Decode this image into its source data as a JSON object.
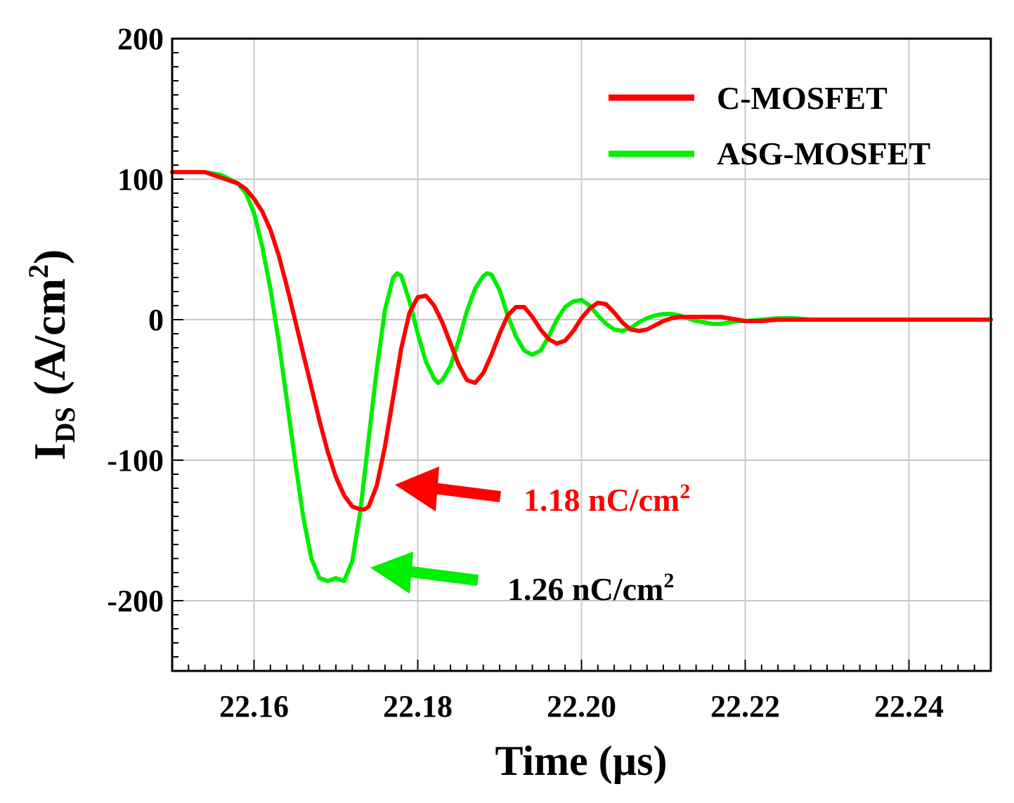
{
  "chart_data": {
    "type": "line",
    "title": "",
    "xlabel": "Time (µs)",
    "ylabel": {
      "main": "I",
      "subscript": "DS",
      "units_prefix": " (A/cm",
      "units_sup": "2",
      "units_suffix": ")"
    },
    "xlim": [
      22.15,
      22.25
    ],
    "ylim": [
      -250,
      200
    ],
    "xticks": [
      22.16,
      22.18,
      22.2,
      22.22,
      22.24
    ],
    "xtick_labels": [
      "22.16",
      "22.18",
      "22.20",
      "22.22",
      "22.24"
    ],
    "yticks": [
      200,
      100,
      0,
      -100,
      -200
    ],
    "ytick_labels": [
      "200",
      "100",
      "0",
      "-100",
      "-200"
    ],
    "grid": true,
    "legend_position": "top-right",
    "series": [
      {
        "name": "C-MOSFET",
        "color": "#ff0000",
        "x": [
          22.15,
          22.152,
          22.154,
          22.156,
          22.158,
          22.159,
          22.16,
          22.161,
          22.162,
          22.163,
          22.164,
          22.165,
          22.166,
          22.167,
          22.168,
          22.169,
          22.17,
          22.171,
          22.172,
          22.173,
          22.1735,
          22.174,
          22.175,
          22.176,
          22.177,
          22.178,
          22.179,
          22.18,
          22.181,
          22.182,
          22.183,
          22.184,
          22.185,
          22.186,
          22.187,
          22.188,
          22.189,
          22.19,
          22.191,
          22.192,
          22.193,
          22.194,
          22.195,
          22.196,
          22.197,
          22.198,
          22.199,
          22.2,
          22.201,
          22.202,
          22.203,
          22.204,
          22.205,
          22.206,
          22.207,
          22.208,
          22.209,
          22.21,
          22.211,
          22.212,
          22.213,
          22.214,
          22.215,
          22.216,
          22.217,
          22.218,
          22.219,
          22.22,
          22.222,
          22.224,
          22.226,
          22.228,
          22.23,
          22.235,
          22.24,
          22.245,
          22.25
        ],
        "values": [
          105,
          105,
          105,
          101,
          97,
          93,
          86,
          77,
          64,
          46,
          24,
          0,
          -24,
          -48,
          -72,
          -94,
          -112,
          -125,
          -133,
          -135,
          -135,
          -133,
          -118,
          -90,
          -55,
          -20,
          5,
          16,
          17,
          10,
          -2,
          -17,
          -32,
          -43,
          -45,
          -38,
          -25,
          -10,
          3,
          9,
          9,
          2,
          -7,
          -14,
          -17,
          -15,
          -8,
          1,
          8,
          12,
          11,
          5,
          -2,
          -7,
          -8,
          -7,
          -4,
          -1,
          1,
          2,
          2,
          2,
          2,
          2,
          2,
          1,
          0,
          -1,
          -1,
          0,
          0,
          0,
          0,
          0,
          0,
          0,
          0
        ]
      },
      {
        "name": "ASG-MOSFET",
        "color": "#00ee00",
        "x": [
          22.15,
          22.152,
          22.154,
          22.156,
          22.158,
          22.159,
          22.16,
          22.161,
          22.162,
          22.163,
          22.164,
          22.165,
          22.166,
          22.167,
          22.168,
          22.169,
          22.17,
          22.1705,
          22.171,
          22.172,
          22.173,
          22.174,
          22.175,
          22.176,
          22.177,
          22.1775,
          22.178,
          22.179,
          22.18,
          22.181,
          22.182,
          22.1825,
          22.183,
          22.184,
          22.185,
          22.186,
          22.187,
          22.188,
          22.1885,
          22.189,
          22.19,
          22.191,
          22.192,
          22.193,
          22.194,
          22.195,
          22.196,
          22.197,
          22.198,
          22.199,
          22.2,
          22.201,
          22.202,
          22.203,
          22.204,
          22.205,
          22.206,
          22.207,
          22.208,
          22.209,
          22.21,
          22.211,
          22.212,
          22.213,
          22.214,
          22.215,
          22.216,
          22.217,
          22.218,
          22.219,
          22.22,
          22.222,
          22.224,
          22.226,
          22.228,
          22.23,
          22.235,
          22.24,
          22.245,
          22.25
        ],
        "values": [
          105,
          105,
          105,
          103,
          97,
          90,
          76,
          52,
          22,
          -15,
          -57,
          -100,
          -140,
          -170,
          -184,
          -186,
          -184,
          -185,
          -186,
          -172,
          -136,
          -85,
          -35,
          7,
          30,
          33,
          31,
          13,
          -10,
          -30,
          -42,
          -45,
          -43,
          -33,
          -15,
          6,
          22,
          31,
          33,
          32,
          21,
          3,
          -12,
          -22,
          -25,
          -22,
          -12,
          0,
          9,
          13,
          14,
          10,
          3,
          -3,
          -7,
          -8,
          -6,
          -2,
          1,
          3,
          4,
          4,
          3,
          1,
          -1,
          -2,
          -3,
          -3,
          -2,
          -1,
          -1,
          0,
          1,
          1,
          0,
          0,
          0,
          0,
          0,
          0
        ]
      }
    ],
    "annotations": [
      {
        "text": "1.18 nC/cm",
        "sup": "2",
        "color": "#ff0000",
        "arrow_to_x": 22.1775,
        "arrow_to_y": -118
      },
      {
        "text": "1.26 nC/cm",
        "sup": "2",
        "color": "#000000",
        "arrow_color": "#00ee00",
        "arrow_to_x": 22.1755,
        "arrow_to_y": -175
      }
    ]
  }
}
